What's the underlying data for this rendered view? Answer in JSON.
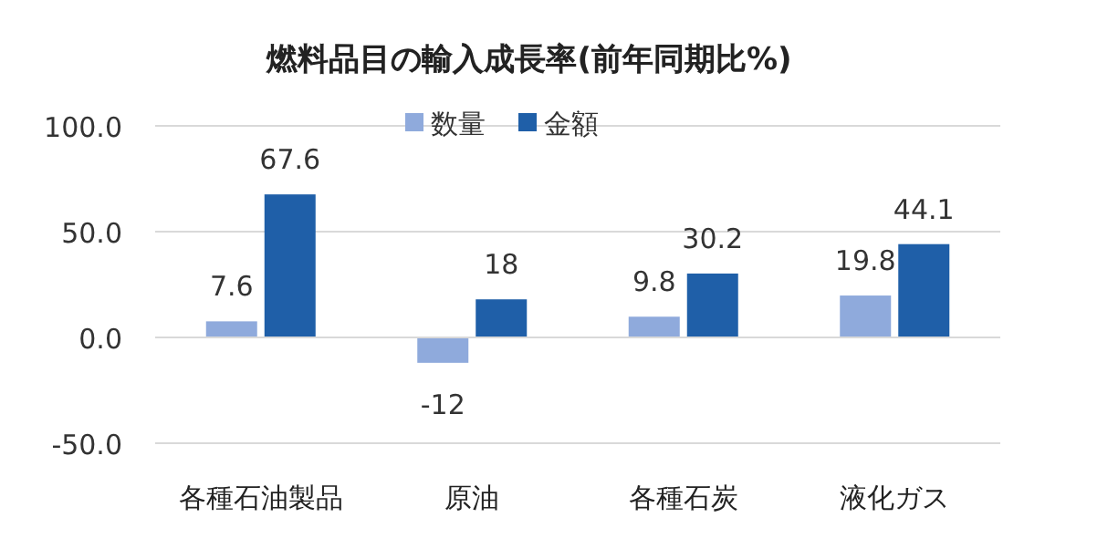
{
  "chart_data": {
    "type": "bar",
    "title": "燃料品目の輸入成長率(前年同期比%)",
    "categories": [
      "各種石油製品",
      "原油",
      "各種石炭",
      "液化ガス"
    ],
    "series": [
      {
        "name": "数量",
        "color": "#8faadc",
        "values": [
          7.6,
          -12,
          9.8,
          19.8
        ]
      },
      {
        "name": "金額",
        "color": "#1f5fa8",
        "values": [
          67.6,
          18,
          30.2,
          44.1
        ]
      }
    ],
    "ylim": [
      -50,
      100
    ],
    "yticks": [
      {
        "value": -50,
        "label": "-50.0"
      },
      {
        "value": 0,
        "label": "0.0"
      },
      {
        "value": 50,
        "label": "50.0"
      },
      {
        "value": 100,
        "label": "100.0"
      }
    ],
    "grid": "y",
    "legend": "top",
    "data_labels": true
  }
}
